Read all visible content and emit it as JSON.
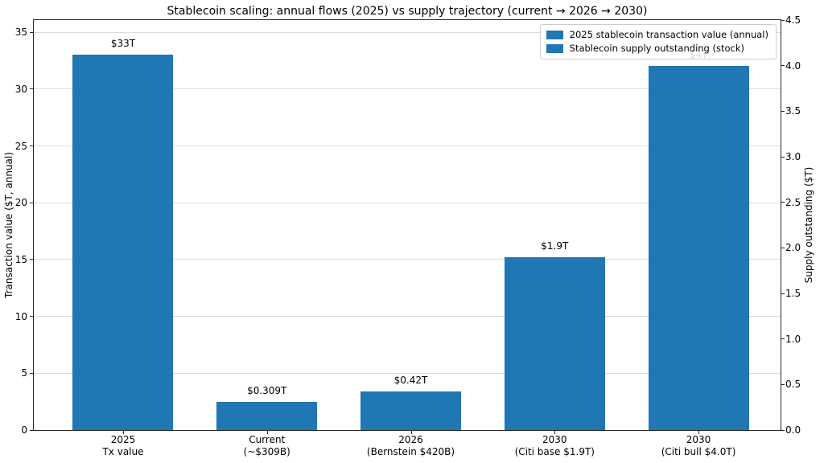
{
  "chart_data": {
    "type": "bar",
    "title": "Stablecoin scaling: annual flows (2025) vs supply trajectory (current → 2026 → 2030)",
    "categories": [
      [
        "2025",
        "Tx value"
      ],
      [
        "Current",
        "(~$309B)"
      ],
      [
        "2026",
        "(Bernstein $420B)"
      ],
      [
        "2030",
        "(Citi base $1.9T)"
      ],
      [
        "2030",
        "(Citi bull $4.0T)"
      ]
    ],
    "series": [
      {
        "name": "2025 stablecoin transaction value (annual)",
        "axis": "left",
        "values": [
          33,
          null,
          null,
          null,
          null
        ],
        "labels": [
          "$33T",
          null,
          null,
          null,
          null
        ]
      },
      {
        "name": "Stablecoin supply outstanding (stock)",
        "axis": "right",
        "values": [
          null,
          0.309,
          0.42,
          1.9,
          4.0
        ],
        "labels": [
          null,
          "$0.309T",
          "$0.42T",
          "$1.9T",
          "$4T"
        ]
      }
    ],
    "left_axis": {
      "label": "Transaction value ($T, annual)",
      "ticks": [
        0,
        5,
        10,
        15,
        20,
        25,
        30,
        35
      ],
      "ylim": [
        0,
        36.07
      ],
      "decimals": 0
    },
    "right_axis": {
      "label": "Supply outstanding ($T)",
      "ticks": [
        0,
        0.5,
        1,
        1.5,
        2,
        2.5,
        3,
        3.5,
        4,
        4.5
      ],
      "ylim": [
        0,
        4.5
      ],
      "decimals": 1
    },
    "bar_color": "#1f77b4",
    "grid": true,
    "legend_position": "upper right"
  }
}
